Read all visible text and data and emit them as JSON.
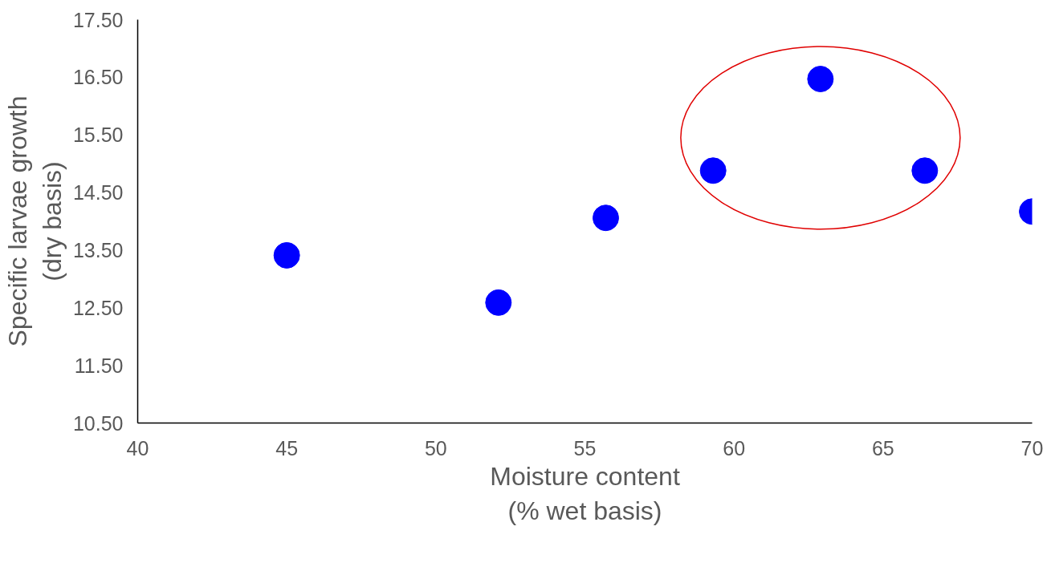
{
  "chart_data": {
    "type": "scatter",
    "xlabel": "Moisture content\n(% wet basis)",
    "ylabel": "Specific larvae growth\n(dry basis)",
    "x": [
      45.0,
      52.1,
      55.7,
      59.3,
      62.9,
      66.4,
      70.0
    ],
    "series": [
      {
        "color": "#0000ff",
        "values": [
          13.41,
          12.59,
          14.06,
          14.88,
          16.47,
          14.88,
          14.17
        ]
      }
    ],
    "xlim": [
      40,
      70
    ],
    "xticks": [
      40,
      45,
      50,
      55,
      60,
      65,
      70
    ],
    "ylim": [
      10.5,
      17.5
    ],
    "yticks": [
      {
        "value": 10.5,
        "label": "10.50"
      },
      {
        "value": 11.5,
        "label": "11.50"
      },
      {
        "value": 12.5,
        "label": "12.50"
      },
      {
        "value": 13.5,
        "label": "13.50"
      },
      {
        "value": 14.5,
        "label": "14.50"
      },
      {
        "value": 15.5,
        "label": "15.50"
      },
      {
        "value": 16.5,
        "label": "16.50"
      },
      {
        "value": 17.5,
        "label": "17.50"
      }
    ],
    "marker": "circle",
    "grid": false
  }
}
